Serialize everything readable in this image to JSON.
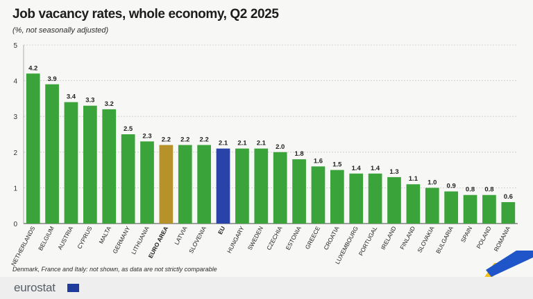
{
  "chart_title": "Job vacancy rates, whole economy, Q2 2025",
  "chart_subtitle": "(%, not seasonally adjusted)",
  "footnote": "Denmark, France and Italy: not shown, as data are not strictly comparable",
  "brand": {
    "name": "eurostat"
  },
  "colors": {
    "default": "#3aa43a",
    "euro_area": "#b5922a",
    "eu": "#2a43a8",
    "grid": "#c9c9c9",
    "accent_yellow": "#f2c21a",
    "accent_blue": "#1f55c8"
  },
  "chart_data": {
    "type": "bar",
    "title": "Job vacancy rates, whole economy, Q2 2025",
    "subtitle": "(%, not seasonally adjusted)",
    "xlabel": "",
    "ylabel": "",
    "ylim": [
      0,
      5
    ],
    "yticks": [
      0,
      1,
      2,
      3,
      4,
      5
    ],
    "grid": true,
    "categories": [
      "NETHERLANDS",
      "BELGIUM",
      "AUSTRIA",
      "CYPRUS",
      "MALTA",
      "GERMANY",
      "LITHUANIA",
      "EURO AREA",
      "LATVIA",
      "SLOVENIA",
      "EU",
      "HUNGARY",
      "SWEDEN",
      "CZECHIA",
      "ESTONIA",
      "GREECE",
      "CROATIA",
      "LUXEMBOURG",
      "PORTUGAL",
      "IRELAND",
      "FINLAND",
      "SLOVAKIA",
      "BULGARIA",
      "SPAIN",
      "POLAND",
      "ROMANIA"
    ],
    "values": [
      4.2,
      3.9,
      3.4,
      3.3,
      3.2,
      2.5,
      2.3,
      2.2,
      2.2,
      2.2,
      2.1,
      2.1,
      2.1,
      2.0,
      1.8,
      1.6,
      1.5,
      1.4,
      1.4,
      1.3,
      1.1,
      1.0,
      0.9,
      0.8,
      0.8,
      0.6
    ],
    "labels": [
      "4.2",
      "3.9",
      "3.4",
      "3.3",
      "3.2",
      "2.5",
      "2.3",
      "2.2",
      "2.2",
      "2.2",
      "2.1",
      "2.1",
      "2.1",
      "2.0",
      "1.8",
      "1.6",
      "1.5",
      "1.4",
      "1.4",
      "1.3",
      "1.1",
      "1.0",
      "0.9",
      "0.8",
      "0.8",
      "0.6"
    ],
    "highlight": {
      "EURO AREA": "euro_area",
      "EU": "eu"
    },
    "bold_categories": [
      "EURO AREA",
      "EU"
    ]
  }
}
